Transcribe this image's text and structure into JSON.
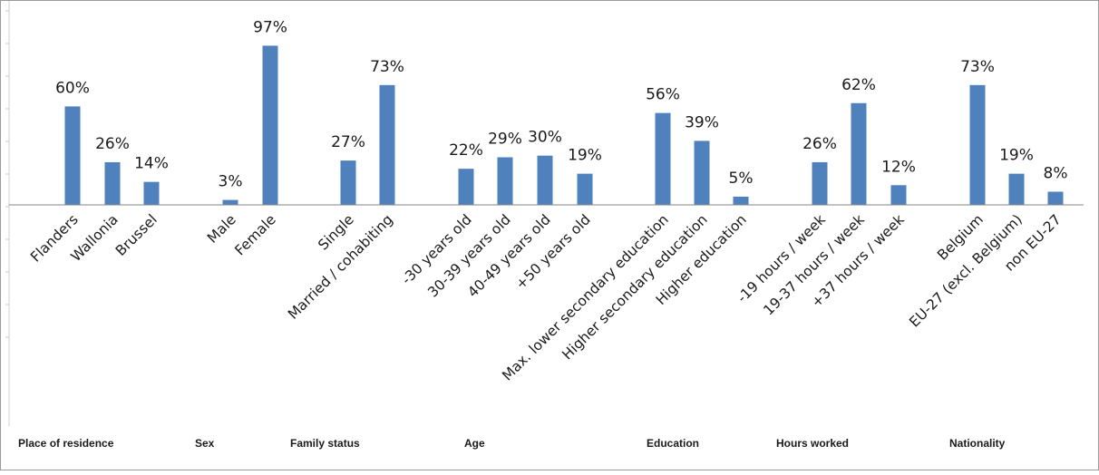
{
  "chart_data": {
    "type": "bar",
    "ylim": [
      0,
      100
    ],
    "grid": false,
    "bar_color": "#4F81BD",
    "groups": [
      {
        "label": "Place of residence",
        "categories": [
          "Flanders",
          "Wallonia",
          "Brussel"
        ],
        "values": [
          60,
          26,
          14
        ],
        "value_labels": [
          "60%",
          "26%",
          "14%"
        ]
      },
      {
        "label": "Sex",
        "categories": [
          "Male",
          "Female"
        ],
        "values": [
          3,
          97
        ],
        "value_labels": [
          "3%",
          "97%"
        ]
      },
      {
        "label": "Family status",
        "categories": [
          "Single",
          "Married / cohabiting"
        ],
        "values": [
          27,
          73
        ],
        "value_labels": [
          "27%",
          "73%"
        ]
      },
      {
        "label": "Age",
        "categories": [
          "-30 years old",
          "30-39 years old",
          "40-49 years old",
          "+50 years old"
        ],
        "values": [
          22,
          29,
          30,
          19
        ],
        "value_labels": [
          "22%",
          "29%",
          "30%",
          "19%"
        ]
      },
      {
        "label": "Education",
        "categories": [
          "Max. lower secondary education",
          "Higher secondary education",
          "Higher education"
        ],
        "values": [
          56,
          39,
          5
        ],
        "value_labels": [
          "56%",
          "39%",
          "5%"
        ]
      },
      {
        "label": "Hours worked",
        "categories": [
          "-19 hours / week",
          "19-37 hours / week",
          "+37 hours / week"
        ],
        "values": [
          26,
          62,
          12
        ],
        "value_labels": [
          "26%",
          "62%",
          "12%"
        ]
      },
      {
        "label": "Nationality",
        "categories": [
          "Belgium",
          "EU-27 (excl. Belgium)",
          "non EU-27"
        ],
        "values": [
          73,
          19,
          8
        ],
        "value_labels": [
          "73%",
          "19%",
          "8%"
        ]
      }
    ]
  }
}
